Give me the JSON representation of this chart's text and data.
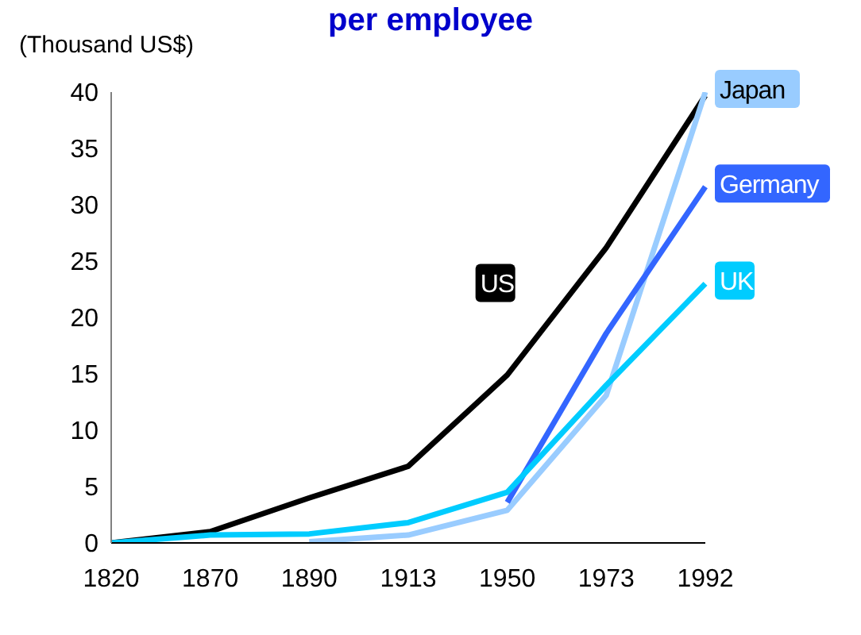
{
  "chart_data": {
    "type": "line",
    "title": "per employee",
    "ylabel": "(Thousand US$)",
    "categories": [
      "1820",
      "1870",
      "1890",
      "1913",
      "1950",
      "1973",
      "1992"
    ],
    "ylim": [
      0,
      40
    ],
    "yticks": [
      0,
      5,
      10,
      15,
      20,
      25,
      30,
      35,
      40
    ],
    "grid": false,
    "legend": false,
    "marker": "none",
    "series": [
      {
        "name": "US",
        "color": "#000000",
        "values": [
          0,
          1.0,
          4.0,
          6.8,
          14.9,
          26.2,
          39.7
        ]
      },
      {
        "name": "Japan",
        "color": "#99ccff",
        "values": [
          null,
          null,
          0.1,
          0.7,
          2.9,
          13.1,
          40.0
        ]
      },
      {
        "name": "Germany",
        "color": "#3366ff",
        "values": [
          null,
          null,
          null,
          null,
          3.6,
          18.6,
          31.6
        ]
      },
      {
        "name": "UK",
        "color": "#00ccff",
        "values": [
          0,
          0.7,
          0.8,
          1.8,
          4.5,
          14.0,
          23.0
        ]
      }
    ]
  }
}
